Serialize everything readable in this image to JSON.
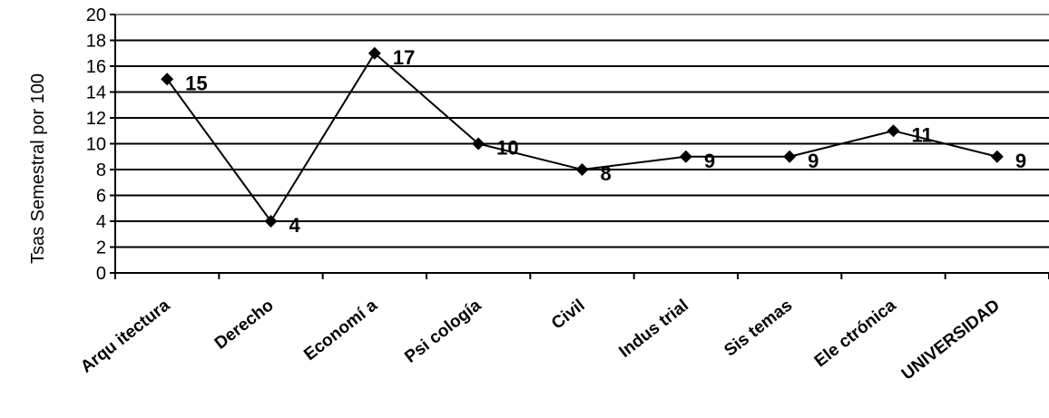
{
  "chart_data": {
    "type": "line",
    "title": "",
    "xlabel": "",
    "ylabel": "Tsas Semestral por 100",
    "categories": [
      "Arquitectura",
      "Derecho",
      "Economía",
      "Psicología",
      "Civil",
      "Industrial",
      "Sistemas",
      "Electrónica",
      "UNIVERSIDAD"
    ],
    "category_display": [
      "Arqu itectura",
      "Derecho",
      "Economí a",
      "Psi cología",
      "Civil",
      "Indus trial",
      "Sis temas",
      "Ele ctrónica",
      "UNIVERSIDAD"
    ],
    "values": [
      15,
      4,
      17,
      10,
      8,
      9,
      9,
      11,
      9
    ],
    "ylim": [
      0,
      20
    ],
    "yticks": [
      0,
      2,
      4,
      6,
      8,
      10,
      12,
      14,
      16,
      18,
      20
    ],
    "grid": true,
    "legend": "none",
    "colors": {
      "line": "#000000",
      "grid": "#000000",
      "marker": "#000000"
    }
  }
}
